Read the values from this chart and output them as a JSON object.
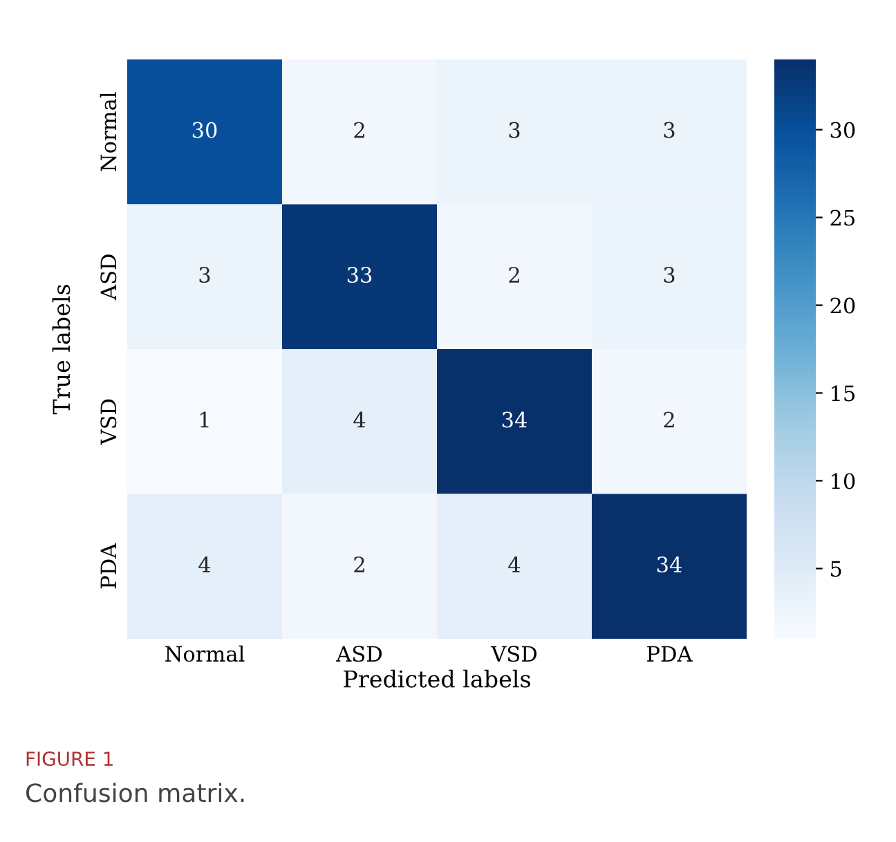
{
  "chart_data": {
    "type": "heatmap",
    "xlabel": "Predicted labels",
    "ylabel": "True labels",
    "categories": [
      "Normal",
      "ASD",
      "VSD",
      "PDA"
    ],
    "y_categories": [
      "Normal",
      "ASD",
      "VSD",
      "PDA"
    ],
    "cells": [
      [
        30,
        2,
        3,
        3
      ],
      [
        3,
        33,
        2,
        3
      ],
      [
        1,
        4,
        34,
        2
      ],
      [
        4,
        2,
        4,
        34
      ]
    ],
    "data_labels": true,
    "clim": [
      1,
      34
    ],
    "cticks": [
      5,
      10,
      15,
      20,
      25,
      30
    ],
    "annotations": [
      "FIGURE 1",
      "Confusion matrix."
    ]
  }
}
